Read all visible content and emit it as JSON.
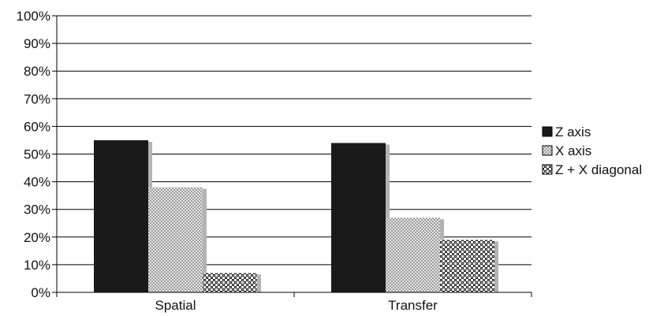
{
  "chart_data": {
    "type": "bar",
    "title": "",
    "xlabel": "",
    "ylabel": "",
    "ylim": [
      0,
      100
    ],
    "y_ticks": [
      "0%",
      "10%",
      "20%",
      "30%",
      "40%",
      "50%",
      "60%",
      "70%",
      "80%",
      "90%",
      "100%"
    ],
    "grid": true,
    "legend_position": "right",
    "categories": [
      "Spatial",
      "Transfer"
    ],
    "series": [
      {
        "name": "Z axis",
        "values": [
          55,
          54
        ],
        "pattern": "solid",
        "color": "#1a1a1a"
      },
      {
        "name": "X axis",
        "values": [
          38,
          27
        ],
        "pattern": "fine-check",
        "color": "#cccccc"
      },
      {
        "name": "Z + X diagonal",
        "values": [
          7,
          19
        ],
        "pattern": "coarse-check",
        "color": "#222222"
      }
    ],
    "shadow_color": "#b3b3b3"
  }
}
